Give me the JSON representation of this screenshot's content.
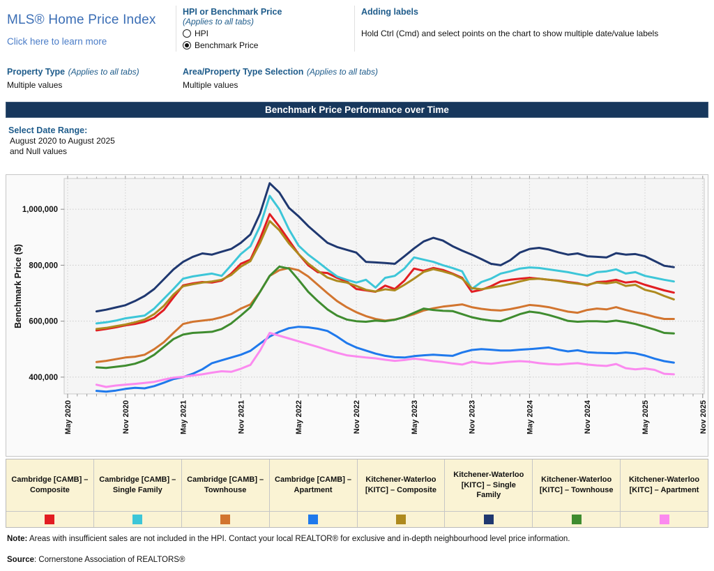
{
  "header": {
    "title": "MLS® Home Price Index",
    "learn_more": "Click here to learn more",
    "hpi_section": {
      "title": "HPI or Benchmark Price",
      "subtitle": "(Applies to all tabs)",
      "options": [
        {
          "label": "HPI",
          "selected": false
        },
        {
          "label": "Benchmark Price",
          "selected": true
        }
      ]
    },
    "adding_labels": {
      "title": "Adding labels",
      "text": "Hold Ctrl (Cmd) and select points on the chart to show multiple date/value labels"
    },
    "property_type": {
      "title": "Property Type",
      "subtitle": "(Applies to all tabs)",
      "value": "Multiple values"
    },
    "area_selection": {
      "title": "Area/Property Type Selection",
      "subtitle": "(Applies to all tabs)",
      "value": "Multiple values"
    }
  },
  "banner": {
    "title": "Benchmark Price Performance over Time",
    "bg": "#17375C"
  },
  "date_range": {
    "label": "Select Date Range:",
    "value": "August 2020 to August 2025",
    "extra": "and Null values"
  },
  "chart_data": {
    "type": "line",
    "title": "Benchmark Price Performance over Time",
    "xlabel": "",
    "ylabel": "Benchmark Price ($)",
    "ylim": [
      340000,
      1110000
    ],
    "yticks": [
      400000,
      600000,
      800000,
      1000000
    ],
    "grid": true,
    "legend_position": "bottom-table",
    "x_tick_labels": [
      "May 2020",
      "Nov 2020",
      "May 2021",
      "Nov 2021",
      "May 2022",
      "Nov 2022",
      "May 2023",
      "Nov 2023",
      "May 2024",
      "Nov 2024",
      "May 2025",
      "Nov 2025"
    ],
    "months": [
      "Aug 2020",
      "Sep 2020",
      "Oct 2020",
      "Nov 2020",
      "Dec 2020",
      "Jan 2021",
      "Feb 2021",
      "Mar 2021",
      "Apr 2021",
      "May 2021",
      "Jun 2021",
      "Jul 2021",
      "Aug 2021",
      "Sep 2021",
      "Oct 2021",
      "Nov 2021",
      "Dec 2021",
      "Jan 2022",
      "Feb 2022",
      "Mar 2022",
      "Apr 2022",
      "May 2022",
      "Jun 2022",
      "Jul 2022",
      "Aug 2022",
      "Sep 2022",
      "Oct 2022",
      "Nov 2022",
      "Dec 2022",
      "Jan 2023",
      "Feb 2023",
      "Mar 2023",
      "Apr 2023",
      "May 2023",
      "Jun 2023",
      "Jul 2023",
      "Aug 2023",
      "Sep 2023",
      "Oct 2023",
      "Nov 2023",
      "Dec 2023",
      "Jan 2024",
      "Feb 2024",
      "Mar 2024",
      "Apr 2024",
      "May 2024",
      "Jun 2024",
      "Jul 2024",
      "Aug 2024",
      "Sep 2024",
      "Oct 2024",
      "Nov 2024",
      "Dec 2024",
      "Jan 2025",
      "Feb 2025",
      "Mar 2025",
      "Apr 2025",
      "May 2025",
      "Jun 2025",
      "Jul 2025",
      "Aug 2025"
    ],
    "series": [
      {
        "name": "Cambridge [CAMB] – Composite",
        "color": "#E21D22",
        "values": [
          567000,
          572000,
          578000,
          585000,
          590000,
          598000,
          612000,
          640000,
          685000,
          728000,
          735000,
          740000,
          738000,
          745000,
          770000,
          805000,
          820000,
          895000,
          983000,
          938000,
          889000,
          840000,
          800000,
          775000,
          772000,
          755000,
          742000,
          715000,
          710000,
          705000,
          727000,
          715000,
          745000,
          788000,
          780000,
          790000,
          783000,
          770000,
          755000,
          705000,
          712000,
          725000,
          742000,
          748000,
          752000,
          755000,
          752000,
          748000,
          745000,
          740000,
          736000,
          728000,
          740000,
          742000,
          748000,
          738000,
          742000,
          730000,
          720000,
          710000,
          702000
        ]
      },
      {
        "name": "Cambridge [CAMB] – Single Family",
        "color": "#3DC6D8",
        "values": [
          592000,
          596000,
          602000,
          610000,
          615000,
          620000,
          645000,
          680000,
          715000,
          752000,
          760000,
          765000,
          770000,
          762000,
          800000,
          840000,
          868000,
          940000,
          1048000,
          1000000,
          928000,
          870000,
          838000,
          812000,
          785000,
          760000,
          748000,
          738000,
          748000,
          720000,
          755000,
          762000,
          788000,
          828000,
          820000,
          812000,
          800000,
          790000,
          778000,
          715000,
          740000,
          752000,
          770000,
          778000,
          788000,
          792000,
          790000,
          785000,
          780000,
          775000,
          768000,
          762000,
          775000,
          778000,
          785000,
          770000,
          775000,
          762000,
          755000,
          748000,
          742000
        ]
      },
      {
        "name": "Cambridge [CAMB] – Townhouse",
        "color": "#D2752F",
        "values": [
          454000,
          458000,
          464000,
          470000,
          473000,
          480000,
          500000,
          525000,
          558000,
          590000,
          598000,
          602000,
          606000,
          614000,
          625000,
          645000,
          660000,
          705000,
          762000,
          782000,
          790000,
          782000,
          760000,
          730000,
          700000,
          672000,
          650000,
          632000,
          618000,
          608000,
          602000,
          606000,
          614000,
          625000,
          638000,
          646000,
          652000,
          656000,
          660000,
          650000,
          644000,
          640000,
          638000,
          643000,
          650000,
          658000,
          655000,
          650000,
          642000,
          634000,
          630000,
          640000,
          645000,
          642000,
          650000,
          640000,
          632000,
          625000,
          615000,
          608000,
          608000
        ]
      },
      {
        "name": "Cambridge [CAMB] – Apartment",
        "color": "#1F79EC",
        "values": [
          351000,
          348000,
          352000,
          358000,
          362000,
          360000,
          368000,
          380000,
          393000,
          400000,
          412000,
          428000,
          450000,
          460000,
          470000,
          480000,
          494000,
          520000,
          545000,
          562000,
          575000,
          580000,
          578000,
          573000,
          565000,
          545000,
          522000,
          506000,
          495000,
          484000,
          476000,
          471000,
          470000,
          475000,
          478000,
          480000,
          478000,
          476000,
          488000,
          497000,
          500000,
          498000,
          495000,
          495000,
          498000,
          500000,
          503000,
          506000,
          498000,
          492000,
          496000,
          489000,
          487000,
          486000,
          485000,
          488000,
          485000,
          477000,
          466000,
          457000,
          452000
        ]
      },
      {
        "name": "Kitchener-Waterloo [KITC] – Composite",
        "color": "#AE8A1E",
        "values": [
          572000,
          576000,
          582000,
          588000,
          596000,
          606000,
          625000,
          655000,
          695000,
          725000,
          732000,
          738000,
          742000,
          748000,
          765000,
          795000,
          815000,
          880000,
          958000,
          925000,
          878000,
          840000,
          806000,
          780000,
          756000,
          744000,
          738000,
          726000,
          712000,
          706000,
          714000,
          710000,
          730000,
          752000,
          776000,
          786000,
          778000,
          768000,
          752000,
          718000,
          714000,
          720000,
          726000,
          733000,
          742000,
          750000,
          752000,
          748000,
          744000,
          738000,
          734000,
          730000,
          738000,
          735000,
          740000,
          726000,
          730000,
          712000,
          704000,
          690000,
          678000
        ]
      },
      {
        "name": "Kitchener-Waterloo [KITC] – Single Family",
        "color": "#1F3870",
        "values": [
          635000,
          641000,
          649000,
          657000,
          672000,
          690000,
          715000,
          750000,
          785000,
          812000,
          830000,
          842000,
          838000,
          848000,
          858000,
          880000,
          910000,
          985000,
          1093000,
          1060000,
          1005000,
          975000,
          940000,
          910000,
          880000,
          865000,
          855000,
          845000,
          812000,
          810000,
          808000,
          805000,
          832000,
          860000,
          885000,
          898000,
          888000,
          868000,
          852000,
          838000,
          822000,
          805000,
          800000,
          818000,
          845000,
          858000,
          862000,
          856000,
          846000,
          838000,
          842000,
          832000,
          830000,
          828000,
          843000,
          838000,
          840000,
          832000,
          815000,
          798000,
          793000
        ]
      },
      {
        "name": "Kitchener-Waterloo [KITC] – Townhouse",
        "color": "#3F8C2F",
        "values": [
          435000,
          433000,
          437000,
          441000,
          448000,
          460000,
          480000,
          508000,
          536000,
          552000,
          558000,
          560000,
          562000,
          572000,
          592000,
          620000,
          650000,
          705000,
          762000,
          795000,
          788000,
          748000,
          705000,
          672000,
          642000,
          620000,
          606000,
          600000,
          598000,
          602000,
          600000,
          605000,
          615000,
          630000,
          645000,
          640000,
          637000,
          636000,
          625000,
          614000,
          607000,
          602000,
          600000,
          612000,
          625000,
          634000,
          630000,
          622000,
          612000,
          601000,
          598000,
          600000,
          600000,
          598000,
          602000,
          597000,
          590000,
          580000,
          570000,
          558000,
          556000
        ]
      },
      {
        "name": "Kitchener-Waterloo [KITC] – Apartment",
        "color": "#FB8AEF",
        "values": [
          373000,
          365000,
          370000,
          373000,
          376000,
          379000,
          383000,
          391000,
          398000,
          401000,
          406000,
          410000,
          416000,
          421000,
          419000,
          430000,
          444000,
          495000,
          558000,
          548000,
          538000,
          528000,
          518000,
          508000,
          497000,
          487000,
          478000,
          474000,
          470000,
          467000,
          462000,
          458000,
          461000,
          466000,
          462000,
          457000,
          454000,
          449000,
          445000,
          455000,
          450000,
          448000,
          452000,
          455000,
          457000,
          455000,
          450000,
          447000,
          445000,
          448000,
          450000,
          445000,
          442000,
          440000,
          447000,
          432000,
          428000,
          431000,
          426000,
          412000,
          410000
        ]
      }
    ]
  },
  "footer": {
    "note_label": "Note:",
    "note_text": " Areas with insufficient sales are not included in the HPI. Contact your local REALTOR® for exclusive and in-depth neighbourhood level price information.",
    "source_label": "Source",
    "source_text": ": Cornerstone Association of REALTORS®"
  }
}
